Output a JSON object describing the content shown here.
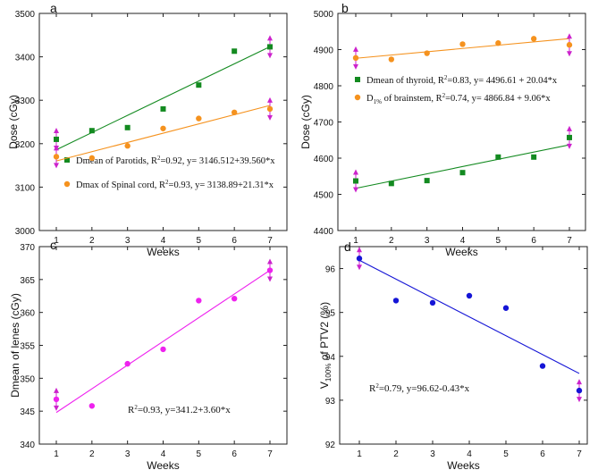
{
  "chart_data": [
    {
      "type": "scatter",
      "panel_label": "a",
      "xlabel": "Weeks",
      "ylabel": "Dose (cGy)",
      "x": [
        1,
        2,
        3,
        4,
        5,
        6,
        7
      ],
      "xticks": [
        "1",
        "2",
        "3",
        "4",
        "5",
        "6",
        "7"
      ],
      "ylim": [
        3000,
        3500
      ],
      "yticks": [
        "3000",
        "3100",
        "3200",
        "3300",
        "3400",
        "3500"
      ],
      "series": [
        {
          "name": "Dmean of Parotids",
          "legend_text": "Dmean of Parotids, R",
          "legend_sup": "2",
          "legend_tail": "=0.92, y= 3146.512+39.560*x",
          "color": "#138a20",
          "marker": "square",
          "values": [
            3210,
            3230,
            3237,
            3280,
            3335,
            3413,
            3423
          ],
          "fit": {
            "intercept": 3146.512,
            "slope": 39.56
          }
        },
        {
          "name": "Dmax of Spinal cord",
          "legend_text": "Dmax of Spinal cord, R",
          "legend_sup": "2",
          "legend_tail": "=0.93, y= 3138.89+21.31*x",
          "color": "#f5921e",
          "marker": "circle",
          "values": [
            3170,
            3167,
            3195,
            3235,
            3258,
            3272,
            3280
          ],
          "fit": {
            "intercept": 3138.89,
            "slope": 21.31
          }
        }
      ],
      "highlighted_x": [
        1,
        7
      ]
    },
    {
      "type": "scatter",
      "panel_label": "b",
      "xlabel": "Weeks",
      "ylabel": "Dose (cGy)",
      "x": [
        1,
        2,
        3,
        4,
        5,
        6,
        7
      ],
      "xticks": [
        "1",
        "2",
        "3",
        "4",
        "5",
        "6",
        "7"
      ],
      "ylim": [
        4400,
        5000
      ],
      "yticks": [
        "4400",
        "4500",
        "4600",
        "4700",
        "4800",
        "4900",
        "5000"
      ],
      "series": [
        {
          "name": "Dmean of thyroid",
          "legend_text": "Dmean of thyroid, R",
          "legend_sup": "2",
          "legend_tail": "=0.83, y= 4496.61 + 20.04*x",
          "color": "#138a20",
          "marker": "square",
          "values": [
            4537,
            4530,
            4538,
            4560,
            4603,
            4603,
            4657
          ],
          "fit": {
            "intercept": 4496.61,
            "slope": 20.04
          }
        },
        {
          "name": "D1% of brainstem",
          "legend_text": "D",
          "legend_sub": "1%",
          "legend_tail": " of brainstem, R",
          "legend_sup": "2",
          "legend_tail2": "=0.74, y= 4866.84 + 9.06*x",
          "color": "#f5921e",
          "marker": "circle",
          "values": [
            4877,
            4873,
            4890,
            4915,
            4918,
            4930,
            4913
          ],
          "fit": {
            "intercept": 4866.84,
            "slope": 9.06
          }
        }
      ],
      "highlighted_x": [
        1,
        7
      ]
    },
    {
      "type": "scatter",
      "panel_label": "c",
      "xlabel": "Weeks",
      "ylabel": "Dmean of lenes (cGy)",
      "x": [
        1,
        2,
        3,
        4,
        5,
        6,
        7
      ],
      "xticks": [
        "1",
        "2",
        "3",
        "4",
        "5",
        "6",
        "7"
      ],
      "ylim": [
        340,
        370
      ],
      "yticks": [
        "340",
        "345",
        "350",
        "355",
        "360",
        "365",
        "370"
      ],
      "series": [
        {
          "name": "Dmean of lenes",
          "color": "#ee22ee",
          "marker": "circle",
          "values": [
            346.8,
            345.8,
            352.2,
            354.4,
            361.8,
            362.1,
            366.4
          ],
          "fit": {
            "intercept": 341.2,
            "slope": 3.6
          }
        }
      ],
      "annotation_pre": "R",
      "annotation_sup": "2",
      "annotation_post": "=0.93, y=341.2+3.60*x",
      "highlighted_x": [
        1,
        7
      ]
    },
    {
      "type": "scatter",
      "panel_label": "d",
      "xlabel": "Weeks",
      "ylabel_main": "V",
      "ylabel_sub": "100%",
      "ylabel_tail": " of PTV2 (%)",
      "x": [
        1,
        2,
        3,
        4,
        5,
        6,
        7
      ],
      "xticks": [
        "1",
        "2",
        "3",
        "4",
        "5",
        "6",
        "7"
      ],
      "ylim": [
        92,
        96.5
      ],
      "yticks": [
        "92",
        "93",
        "94",
        "95",
        "96"
      ],
      "series": [
        {
          "name": "V100% of PTV2",
          "color": "#1515d6",
          "marker": "circle",
          "values": [
            96.23,
            95.27,
            95.22,
            95.38,
            95.1,
            93.78,
            93.22
          ],
          "fit": {
            "intercept": 96.62,
            "slope": -0.43
          }
        }
      ],
      "annotation_pre": "R",
      "annotation_sup": "2",
      "annotation_post": "=0.79, y=96.62-0.43*x",
      "highlighted_x": [
        1,
        7
      ]
    }
  ],
  "colors": {
    "axis": "#222222",
    "arrow": "#cc22cc"
  }
}
